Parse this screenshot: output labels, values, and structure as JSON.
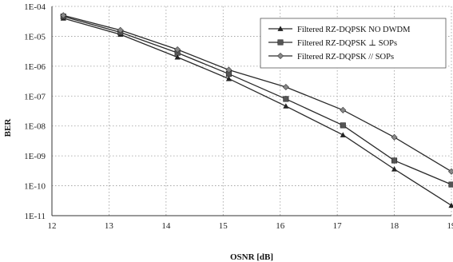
{
  "chart_data": {
    "type": "line",
    "xlabel": "OSNR [dB]",
    "ylabel": "BER",
    "xlim": [
      12,
      19
    ],
    "ylim_exponent": [
      -11,
      -4
    ],
    "y_scale": "log",
    "grid": true,
    "legend_placement": "top-right",
    "x_ticks": [
      "12",
      "13",
      "14",
      "15",
      "16",
      "17",
      "18",
      "19"
    ],
    "y_ticks": [
      "1E-04",
      "1E-05",
      "1E-06",
      "1E-07",
      "1E-08",
      "1E-09",
      "1E-10",
      "1E-11"
    ],
    "series": [
      {
        "name": "Filtered RZ-DQPSK  NO DWDM",
        "marker": "triangle",
        "x": [
          12.2,
          13.2,
          14.2,
          15.1,
          16.1,
          17.1,
          18.0,
          19.0
        ],
        "y": [
          4e-05,
          1.15e-05,
          2e-06,
          3.8e-07,
          4.6e-08,
          5e-09,
          3.6e-10,
          2.2e-11
        ]
      },
      {
        "name": "Filtered RZ-DQPSK ⊥ SOPs",
        "marker": "square",
        "x": [
          12.2,
          13.2,
          14.2,
          15.1,
          16.1,
          17.1,
          18.0,
          19.0
        ],
        "y": [
          4.6e-05,
          1.35e-05,
          2.8e-06,
          5.5e-07,
          8e-08,
          1.05e-08,
          7e-10,
          1.1e-10
        ]
      },
      {
        "name": "Filtered RZ-DQPSK // SOPs",
        "marker": "diamond",
        "x": [
          12.2,
          13.2,
          14.2,
          15.1,
          16.1,
          17.1,
          18.0,
          19.0
        ],
        "y": [
          5e-05,
          1.6e-05,
          3.6e-06,
          7.5e-07,
          2e-07,
          3.4e-08,
          4.2e-09,
          3e-10
        ]
      }
    ]
  }
}
